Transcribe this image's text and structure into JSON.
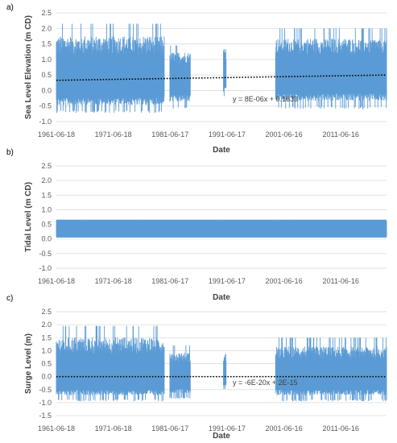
{
  "chart_data": [
    {
      "type": "scatter",
      "panel_label": "a)",
      "xlabel": "Date",
      "ylabel": "Sea Level Elevation (m CD)",
      "ylim": [
        -1.0,
        2.5
      ],
      "ytick_step": 0.5,
      "yticks": [
        "2.5",
        "2.0",
        "1.5",
        "1.0",
        "0.5",
        "0.0",
        "-0.5",
        "-1.0"
      ],
      "xlim": [
        "1961-06-18",
        "2019-06-30"
      ],
      "xticks": [
        "1961-06-18",
        "1971-06-18",
        "1981-06-17",
        "1991-06-17",
        "2001-06-16",
        "2011-06-16"
      ],
      "grid": "horizontal",
      "series_color": "#5b9bd5",
      "trendline": {
        "style": "dotted",
        "color": "#000000",
        "start": 0.33,
        "end": 0.5,
        "equation": "y = 8E-06x + 0.1633"
      },
      "data_segments": [
        {
          "start": "1961-06-18",
          "end": "1980-06-01",
          "centre": 0.33,
          "lower": -0.72,
          "upper": 2.15
        },
        {
          "start": "1981-06-01",
          "end": "1985-01-01",
          "centre": 0.42,
          "lower": -0.6,
          "upper": 1.45
        },
        {
          "start": "1990-11-01",
          "end": "1991-04-15",
          "centre": 0.45,
          "lower": -0.22,
          "upper": 1.7
        },
        {
          "start": "2000-01-01",
          "end": "2019-06-30",
          "centre": 0.5,
          "lower": -0.6,
          "upper": 2.0
        }
      ]
    },
    {
      "type": "scatter",
      "panel_label": "b)",
      "xlabel": "Date",
      "ylabel": "Tidal Level (m CD)",
      "ylim": [
        -1.0,
        2.5
      ],
      "ytick_step": 0.5,
      "yticks": [
        "2.5",
        "2.0",
        "1.5",
        "1.0",
        "0.5",
        "0.0",
        "-0.5",
        "-1.0"
      ],
      "xlim": [
        "1961-06-18",
        "2019-06-30"
      ],
      "xticks": [
        "1961-06-18",
        "1971-06-18",
        "1981-06-17",
        "1991-06-17",
        "2001-06-16",
        "2011-06-16"
      ],
      "grid": "horizontal",
      "series_color": "#5b9bd5",
      "data_segments": [
        {
          "start": "1961-06-18",
          "end": "2019-06-30",
          "centre": 0.36,
          "lower": 0.05,
          "upper": 0.66
        }
      ]
    },
    {
      "type": "scatter",
      "panel_label": "c)",
      "xlabel": "Date",
      "ylabel": "Surge Level (m)",
      "ylim": [
        -1.5,
        2.5
      ],
      "ytick_step": 0.5,
      "yticks": [
        "2.5",
        "2.0",
        "1.5",
        "1.0",
        "0.5",
        "0.0",
        "-0.5",
        "-1.0",
        "-1.5"
      ],
      "xlim": [
        "1961-06-18",
        "2019-06-30"
      ],
      "xticks": [
        "1961-06-18",
        "1971-06-18",
        "1981-06-17",
        "1991-06-17",
        "2001-06-16",
        "2011-06-16"
      ],
      "grid": "horizontal",
      "series_color": "#5b9bd5",
      "trendline": {
        "style": "dotted",
        "color": "#000000",
        "start": 0.0,
        "end": 0.0,
        "equation": "y = -6E-20x + 2E-15"
      },
      "data_segments": [
        {
          "start": "1961-06-18",
          "end": "1980-06-01",
          "centre": 0.0,
          "lower": -0.95,
          "upper": 1.95
        },
        {
          "start": "1981-06-01",
          "end": "1985-01-01",
          "centre": 0.0,
          "lower": -0.85,
          "upper": 1.2
        },
        {
          "start": "1990-11-01",
          "end": "1991-04-15",
          "centre": 0.0,
          "lower": -0.5,
          "upper": 1.15
        },
        {
          "start": "2000-01-01",
          "end": "2019-06-30",
          "centre": 0.0,
          "lower": -0.95,
          "upper": 1.5
        }
      ]
    }
  ]
}
